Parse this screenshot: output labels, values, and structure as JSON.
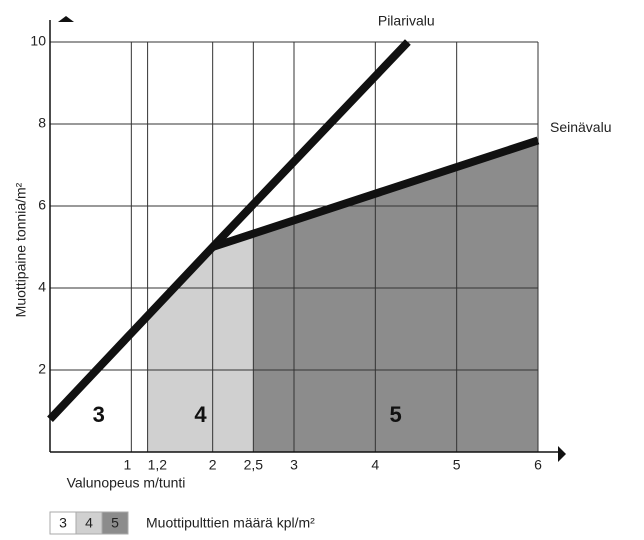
{
  "chart_data": {
    "type": "line",
    "x_label": "Valunopeus m/tunti",
    "y_label": "Muottipaine tonnia/m²",
    "xlim": [
      0,
      6
    ],
    "ylim": [
      0,
      10
    ],
    "xticks": [
      1,
      {
        "value": 1.2,
        "label": "1,2"
      },
      2,
      {
        "value": 2.5,
        "label": "2,5"
      },
      3,
      4,
      5,
      6
    ],
    "yticks": [
      2,
      4,
      6,
      8,
      10
    ],
    "grid": true,
    "series": [
      {
        "name": "Pilarivalu",
        "color": "#111111",
        "x": [
          0,
          2,
          4.4
        ],
        "values": [
          0.8,
          5,
          10
        ]
      },
      {
        "name": "Seinävalu",
        "color": "#111111",
        "x": [
          2,
          6
        ],
        "values": [
          5,
          7.6
        ]
      }
    ],
    "zones": [
      {
        "label": "3",
        "from": 0,
        "to": 1.2,
        "color": "#ffffff"
      },
      {
        "label": "4",
        "from": 1.2,
        "to": 2.5,
        "color": "#d0d0d0"
      },
      {
        "label": "5",
        "from": 2.5,
        "to": 6,
        "color": "#8c8c8c"
      }
    ],
    "legend_title": "Muottipulttien määrä kpl/m²"
  }
}
